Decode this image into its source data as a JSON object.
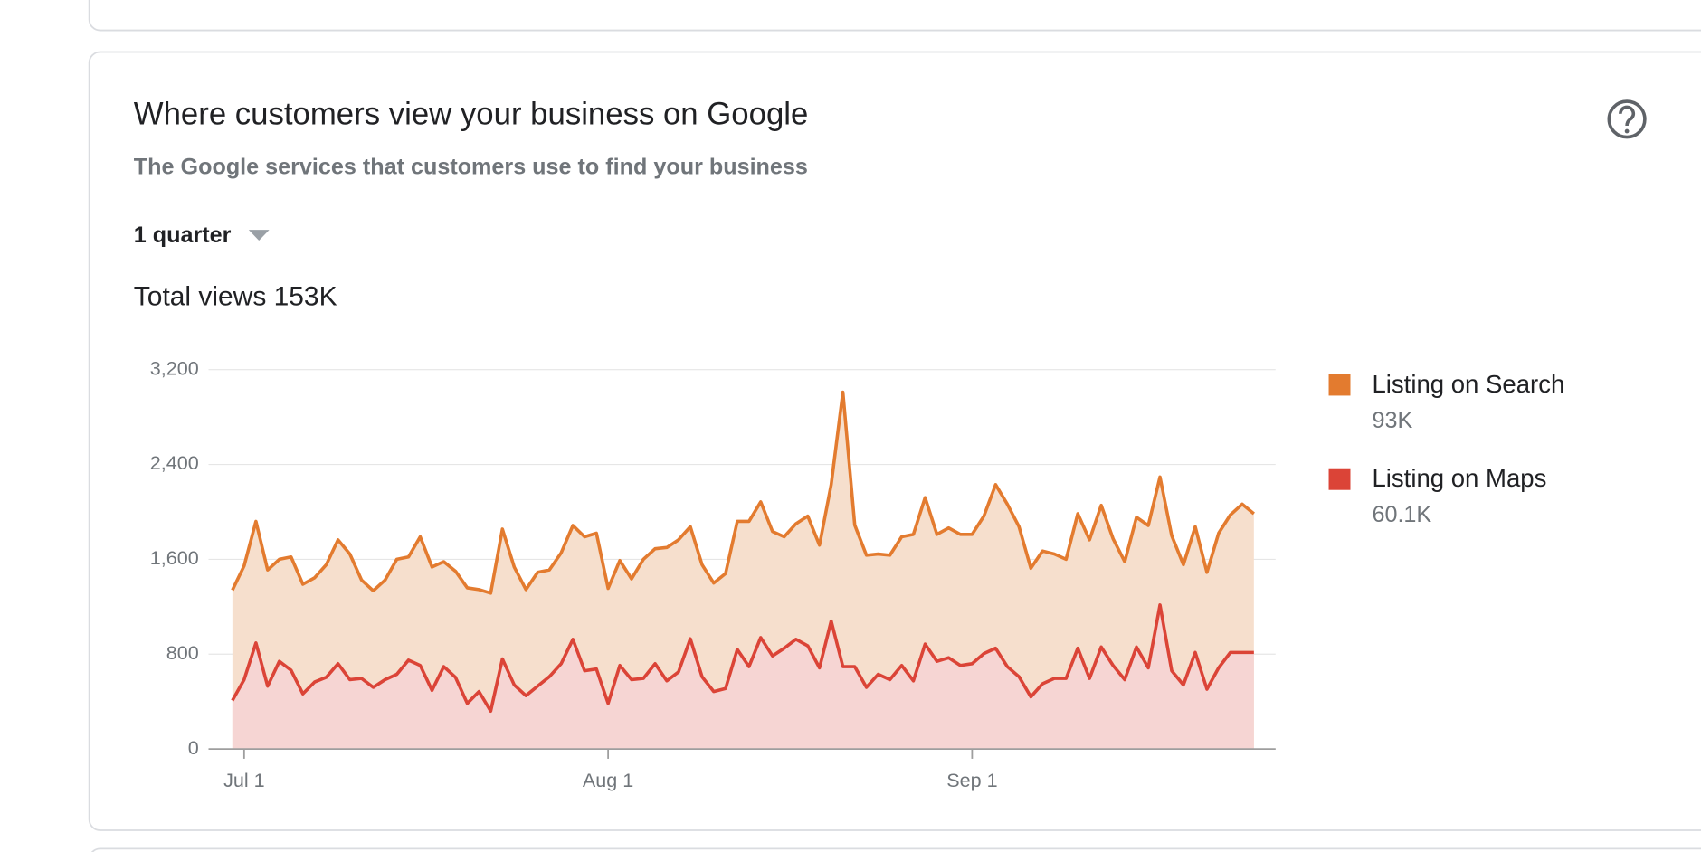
{
  "card": {
    "title": "Where customers view your business on Google",
    "subtitle": "The Google services that customers use to find your business",
    "period": "1 quarter",
    "total": "Total views 153K"
  },
  "chart_data": {
    "type": "area",
    "categories": [
      null,
      "Jul 1",
      null,
      null,
      null,
      null,
      null,
      null,
      null,
      null,
      null,
      null,
      null,
      null,
      null,
      null,
      null,
      null,
      null,
      null,
      null,
      null,
      null,
      null,
      null,
      null,
      null,
      null,
      null,
      null,
      null,
      null,
      "Aug 1",
      null,
      null,
      null,
      null,
      null,
      null,
      null,
      null,
      null,
      null,
      null,
      null,
      null,
      null,
      null,
      null,
      null,
      null,
      null,
      null,
      null,
      null,
      null,
      null,
      null,
      null,
      null,
      null,
      null,
      null,
      "Sep 1",
      null,
      null,
      null,
      null,
      null,
      null,
      null,
      null,
      null,
      null,
      null,
      null,
      null,
      null,
      null,
      null,
      null,
      null,
      null,
      null,
      null,
      null,
      null,
      null
    ],
    "series": [
      {
        "name": "Listing on Search",
        "total": "93K",
        "color": "#e37b2f",
        "fill": "#f6dfcd",
        "values": [
          1340,
          1545,
          1920,
          1510,
          1600,
          1620,
          1390,
          1445,
          1555,
          1765,
          1645,
          1425,
          1335,
          1425,
          1600,
          1620,
          1790,
          1535,
          1580,
          1500,
          1360,
          1345,
          1315,
          1855,
          1535,
          1345,
          1490,
          1510,
          1655,
          1885,
          1790,
          1820,
          1355,
          1590,
          1435,
          1600,
          1690,
          1700,
          1765,
          1875,
          1555,
          1400,
          1480,
          1920,
          1920,
          2085,
          1835,
          1790,
          1900,
          1965,
          1720,
          2230,
          3010,
          1890,
          1635,
          1645,
          1635,
          1790,
          1810,
          2120,
          1810,
          1865,
          1810,
          1810,
          1965,
          2230,
          2065,
          1875,
          1525,
          1670,
          1645,
          1600,
          1985,
          1765,
          2055,
          1775,
          1580,
          1955,
          1885,
          2295,
          1800,
          1555,
          1875,
          1490,
          1820,
          1975,
          2065,
          1985
        ]
      },
      {
        "name": "Listing on Maps",
        "total": "60.1K",
        "color": "#db4437",
        "fill": "#f6d5d3",
        "values": [
          410,
          585,
          895,
          530,
          740,
          665,
          465,
          565,
          605,
          720,
          585,
          595,
          520,
          585,
          630,
          750,
          705,
          495,
          695,
          605,
          385,
          485,
          320,
          760,
          540,
          450,
          530,
          610,
          720,
          925,
          660,
          675,
          385,
          705,
          585,
          595,
          720,
          575,
          650,
          930,
          610,
          485,
          510,
          840,
          695,
          940,
          785,
          850,
          925,
          870,
          685,
          1080,
          695,
          695,
          520,
          630,
          585,
          705,
          575,
          885,
          740,
          770,
          705,
          720,
          805,
          850,
          695,
          610,
          440,
          550,
          595,
          595,
          850,
          595,
          860,
          705,
          585,
          860,
          685,
          1215,
          660,
          540,
          815,
          505,
          685,
          815,
          815,
          815
        ]
      }
    ],
    "ylim": [
      0,
      3200
    ],
    "yticks": [
      0,
      800,
      {
        "value": 1600,
        "label": "1,600"
      },
      {
        "value": 2400,
        "label": "2,400"
      },
      {
        "value": 3200,
        "label": "3,200"
      }
    ],
    "grid": true
  }
}
